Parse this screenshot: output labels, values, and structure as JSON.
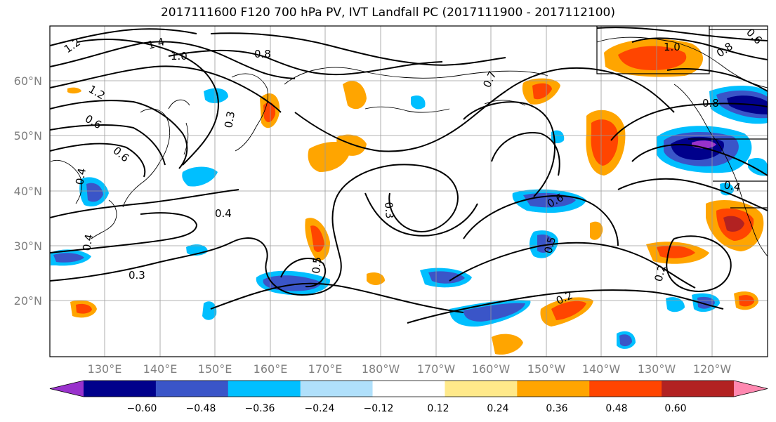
{
  "title": "2017111600 F120 700 hPa PV, IVT Landfall PC (2017111900 - 2017112100)",
  "lat_labels": [
    "60°N",
    "50°N",
    "40°N",
    "30°N",
    "20°N"
  ],
  "lon_labels": [
    "130°E",
    "140°E",
    "150°E",
    "160°E",
    "170°E",
    "180°W",
    "170°W",
    "160°W",
    "150°W",
    "140°W",
    "130°W",
    "120°W"
  ],
  "contour_labels": [
    "1.2",
    "1.4",
    "1.0",
    "0.8",
    "0.7",
    "1.2",
    "0.4",
    "0.6",
    "0.6",
    "0.4",
    "0.3",
    "0.4",
    "0.3",
    "0.5",
    "0.6",
    "0.5",
    "0.2",
    "0.2",
    "1.0",
    "0.8",
    "0.8",
    "0.6",
    "0.4",
    "0.3"
  ],
  "colorbar": {
    "ticks": [
      "−0.60",
      "−0.48",
      "−0.36",
      "−0.24",
      "−0.12",
      "0.12",
      "0.24",
      "0.36",
      "0.48",
      "0.60"
    ],
    "colors": [
      "#9932cc",
      "#00008b",
      "#3a55c8",
      "#00bfff",
      "#b0e0fb",
      "#ffffff",
      "#ffe98a",
      "#ffa500",
      "#ff4500",
      "#b22222",
      "#ff88b0"
    ]
  },
  "colors": {
    "contour": "#000000",
    "grid": "#9a9a9a",
    "axis_label": "#808080"
  }
}
